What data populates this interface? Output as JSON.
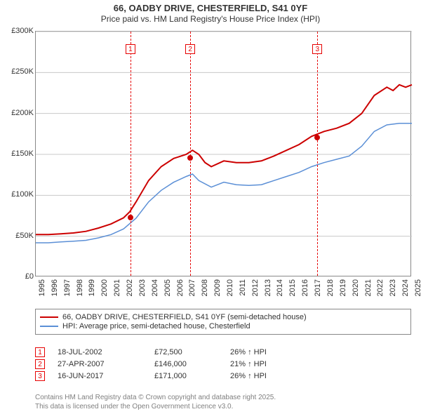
{
  "title": {
    "main": "66, OADBY DRIVE, CHESTERFIELD, S41 0YF",
    "sub": "Price paid vs. HM Land Registry's House Price Index (HPI)"
  },
  "chart": {
    "type": "line",
    "background_color": "#ffffff",
    "grid_color": "#c8c8c8",
    "axis_color": "#888888",
    "label_fontsize": 11,
    "y_axis": {
      "min": 0,
      "max": 300000,
      "step": 50000,
      "format_prefix": "£",
      "format_suffix": "K",
      "format_divisor": 1000,
      "ticks": [
        "£0",
        "£50K",
        "£100K",
        "£150K",
        "£200K",
        "£250K",
        "£300K"
      ]
    },
    "x_axis": {
      "min": 1995,
      "max": 2025,
      "step": 1,
      "ticks": [
        "1995",
        "1996",
        "1997",
        "1998",
        "1999",
        "2000",
        "2001",
        "2002",
        "2003",
        "2004",
        "2005",
        "2006",
        "2007",
        "2008",
        "2009",
        "2010",
        "2011",
        "2012",
        "2013",
        "2014",
        "2015",
        "2016",
        "2017",
        "2018",
        "2019",
        "2020",
        "2021",
        "2022",
        "2023",
        "2024",
        "2025"
      ]
    },
    "series": [
      {
        "id": "price_paid",
        "label": "66, OADBY DRIVE, CHESTERFIELD, S41 0YF (semi-detached house)",
        "color": "#cc0000",
        "line_width": 2,
        "data": [
          [
            1995,
            52000
          ],
          [
            1996,
            52000
          ],
          [
            1997,
            53000
          ],
          [
            1998,
            54000
          ],
          [
            1999,
            56000
          ],
          [
            2000,
            60000
          ],
          [
            2001,
            65000
          ],
          [
            2002,
            72500
          ],
          [
            2002.5,
            80000
          ],
          [
            2003,
            92000
          ],
          [
            2004,
            118000
          ],
          [
            2005,
            135000
          ],
          [
            2006,
            145000
          ],
          [
            2007,
            150000
          ],
          [
            2007.5,
            155000
          ],
          [
            2008,
            150000
          ],
          [
            2008.5,
            140000
          ],
          [
            2009,
            135000
          ],
          [
            2010,
            142000
          ],
          [
            2011,
            140000
          ],
          [
            2012,
            140000
          ],
          [
            2013,
            142000
          ],
          [
            2014,
            148000
          ],
          [
            2015,
            155000
          ],
          [
            2016,
            162000
          ],
          [
            2017,
            172000
          ],
          [
            2018,
            178000
          ],
          [
            2019,
            182000
          ],
          [
            2020,
            188000
          ],
          [
            2021,
            200000
          ],
          [
            2022,
            222000
          ],
          [
            2023,
            232000
          ],
          [
            2023.5,
            228000
          ],
          [
            2024,
            235000
          ],
          [
            2024.5,
            232000
          ],
          [
            2025,
            235000
          ]
        ]
      },
      {
        "id": "hpi",
        "label": "HPI: Average price, semi-detached house, Chesterfield",
        "color": "#5b8fd6",
        "line_width": 1.5,
        "data": [
          [
            1995,
            42000
          ],
          [
            1996,
            42000
          ],
          [
            1997,
            43000
          ],
          [
            1998,
            44000
          ],
          [
            1999,
            45000
          ],
          [
            2000,
            48000
          ],
          [
            2001,
            52000
          ],
          [
            2002,
            59000
          ],
          [
            2003,
            72000
          ],
          [
            2004,
            92000
          ],
          [
            2005,
            106000
          ],
          [
            2006,
            116000
          ],
          [
            2007,
            123000
          ],
          [
            2007.5,
            126000
          ],
          [
            2008,
            118000
          ],
          [
            2009,
            110000
          ],
          [
            2010,
            116000
          ],
          [
            2011,
            113000
          ],
          [
            2012,
            112000
          ],
          [
            2013,
            113000
          ],
          [
            2014,
            118000
          ],
          [
            2015,
            123000
          ],
          [
            2016,
            128000
          ],
          [
            2017,
            135000
          ],
          [
            2018,
            140000
          ],
          [
            2019,
            144000
          ],
          [
            2020,
            148000
          ],
          [
            2021,
            160000
          ],
          [
            2022,
            178000
          ],
          [
            2023,
            186000
          ],
          [
            2024,
            188000
          ],
          [
            2025,
            188000
          ]
        ]
      }
    ],
    "sale_markers": [
      {
        "n": "1",
        "year": 2002.55,
        "price": 72500,
        "date": "18-JUL-2002",
        "delta": "26% ↑ HPI"
      },
      {
        "n": "2",
        "year": 2007.32,
        "price": 146000,
        "date": "27-APR-2007",
        "delta": "21% ↑ HPI"
      },
      {
        "n": "3",
        "year": 2017.46,
        "price": 171000,
        "date": "16-JUN-2017",
        "delta": "26% ↑ HPI"
      }
    ],
    "marker_box_color": "#e60000",
    "sales_table": {
      "price_prefix": "£",
      "prices": [
        "£72,500",
        "£146,000",
        "£171,000"
      ]
    }
  },
  "footer": {
    "line1": "Contains HM Land Registry data © Crown copyright and database right 2025.",
    "line2": "This data is licensed under the Open Government Licence v3.0."
  }
}
